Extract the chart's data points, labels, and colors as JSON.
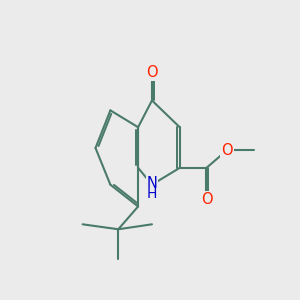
{
  "bg_color": "#ebebeb",
  "bond_color": "#4a7a6a",
  "bond_width": 1.5,
  "atom_colors": {
    "O": "#ff2200",
    "N": "#0000cc"
  },
  "font_size": 10.5
}
